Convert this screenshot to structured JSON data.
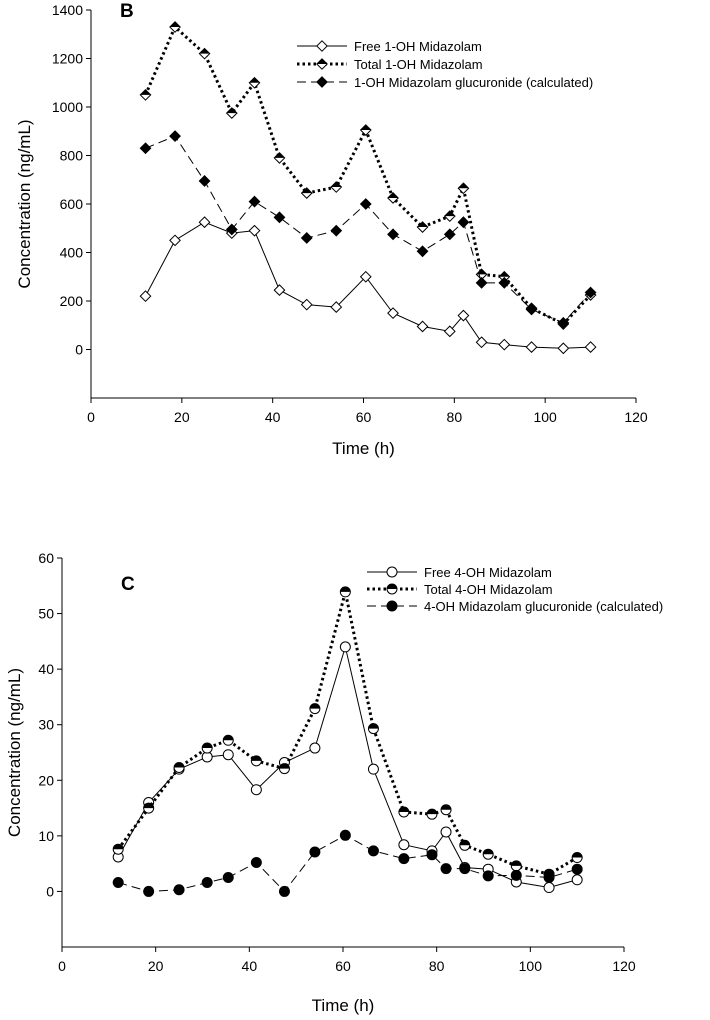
{
  "chart_data": [
    {
      "type": "line",
      "panel_label": "B",
      "xlabel": "Time (h)",
      "ylabel": "Concentration (ng/mL)",
      "xlim": [
        0,
        120
      ],
      "ylim": [
        -200,
        1400
      ],
      "xticks": [
        0,
        20,
        40,
        60,
        80,
        100,
        120
      ],
      "yticks": [
        0,
        200,
        400,
        600,
        800,
        1000,
        1200,
        1400
      ],
      "legend_position": "top-right",
      "series": [
        {
          "name": "Free 1-OH Midazolam",
          "marker": "diamond-open",
          "line": "solid",
          "x": [
            12,
            18.5,
            25,
            31,
            36,
            41.5,
            47.5,
            54,
            60.5,
            66.5,
            73,
            79,
            82,
            86,
            91,
            97,
            104,
            110
          ],
          "y": [
            220,
            450,
            525,
            480,
            490,
            245,
            185,
            175,
            300,
            150,
            95,
            75,
            140,
            30,
            20,
            10,
            5,
            10
          ]
        },
        {
          "name": "Total 1-OH Midazolam",
          "marker": "diamond-half",
          "line": "dotted",
          "x": [
            12,
            18.5,
            25,
            31,
            36,
            41.5,
            47.5,
            54,
            60.5,
            66.5,
            73,
            79,
            82,
            86,
            91,
            97,
            104,
            110
          ],
          "y": [
            1050,
            1330,
            1220,
            975,
            1100,
            790,
            645,
            670,
            905,
            625,
            505,
            550,
            665,
            310,
            300,
            170,
            105,
            225
          ]
        },
        {
          "name": "1-OH Midazolam glucuronide (calculated)",
          "marker": "diamond-filled",
          "line": "dashed",
          "x": [
            12,
            18.5,
            25,
            31,
            36,
            41.5,
            47.5,
            54,
            60.5,
            66.5,
            73,
            79,
            82,
            86,
            91,
            97,
            104,
            110
          ],
          "y": [
            830,
            880,
            695,
            495,
            610,
            545,
            460,
            490,
            600,
            475,
            405,
            475,
            525,
            275,
            275,
            165,
            110,
            235
          ]
        }
      ]
    },
    {
      "type": "line",
      "panel_label": "C",
      "xlabel": "Time (h)",
      "ylabel": "Concentration (ng/mL)",
      "xlim": [
        0,
        120
      ],
      "ylim": [
        -10,
        60
      ],
      "xticks": [
        0,
        20,
        40,
        60,
        80,
        100,
        120
      ],
      "yticks": [
        0,
        10,
        20,
        30,
        40,
        50,
        60
      ],
      "legend_position": "top-right",
      "series": [
        {
          "name": "Free 4-OH Midazolam",
          "marker": "circle-open",
          "line": "solid",
          "x": [
            12,
            18.5,
            25,
            31,
            35.5,
            41.5,
            47.5,
            54,
            60.5,
            66.5,
            73,
            79,
            82,
            86,
            91,
            97,
            104,
            110
          ],
          "y": [
            6.2,
            16,
            22,
            24.2,
            24.6,
            18.3,
            23.2,
            25.8,
            44,
            22,
            8.4,
            7.3,
            10.7,
            4.3,
            4.0,
            1.7,
            0.7,
            2.1
          ]
        },
        {
          "name": "Total 4-OH Midazolam",
          "marker": "circle-half",
          "line": "dotted",
          "x": [
            12,
            18.5,
            25,
            31,
            35.5,
            41.5,
            47.5,
            54,
            60.5,
            66.5,
            73,
            79,
            82,
            86,
            91,
            97,
            104,
            110
          ],
          "y": [
            7.6,
            15,
            22.3,
            25.8,
            27.2,
            23.5,
            22.1,
            32.9,
            53.9,
            29.3,
            14.3,
            13.9,
            14.7,
            8.3,
            6.7,
            4.6,
            3.1,
            6.1
          ]
        },
        {
          "name": "4-OH Midazolam glucuronide (calculated)",
          "marker": "circle-filled",
          "line": "dashed",
          "x": [
            12,
            18.5,
            25,
            31,
            35.5,
            41.5,
            47.5,
            54,
            60.5,
            66.5,
            73,
            79,
            82,
            86,
            91,
            97,
            104,
            110
          ],
          "y": [
            1.6,
            0,
            0.3,
            1.6,
            2.5,
            5.2,
            0,
            7.1,
            10.1,
            7.3,
            5.9,
            6.6,
            4.1,
            4.1,
            2.8,
            2.9,
            2.5,
            4.0
          ]
        }
      ]
    }
  ]
}
